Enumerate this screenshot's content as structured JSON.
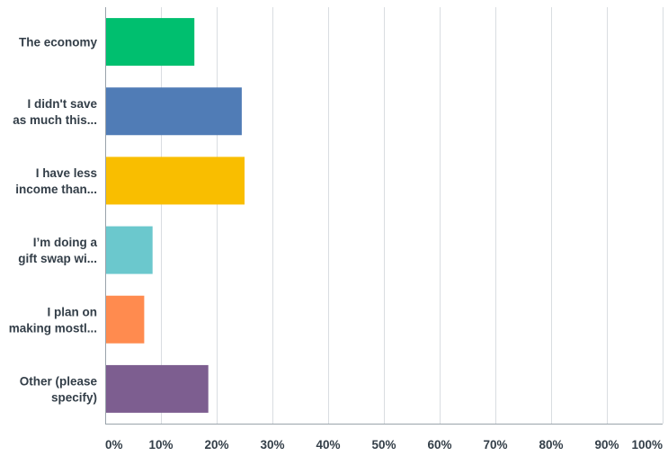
{
  "chart_data": {
    "type": "bar",
    "orientation": "horizontal",
    "categories": [
      [
        "The economy"
      ],
      [
        "I didn't save",
        "as much this..."
      ],
      [
        "I have less",
        "income than..."
      ],
      [
        "I’m doing a",
        "gift swap wi..."
      ],
      [
        "I plan on",
        "making mostl..."
      ],
      [
        "Other (please",
        "specify)"
      ]
    ],
    "values": [
      16,
      24.5,
      25,
      8.5,
      7,
      18.5
    ],
    "colors": [
      "#00bf6f",
      "#507cb6",
      "#f9be00",
      "#6bc8cd",
      "#ff8b4f",
      "#7d5e90"
    ],
    "xlim": [
      0,
      100
    ],
    "xticks": [
      0,
      10,
      20,
      30,
      40,
      50,
      60,
      70,
      80,
      90,
      100
    ],
    "tick_suffix": "%",
    "grid": true
  }
}
